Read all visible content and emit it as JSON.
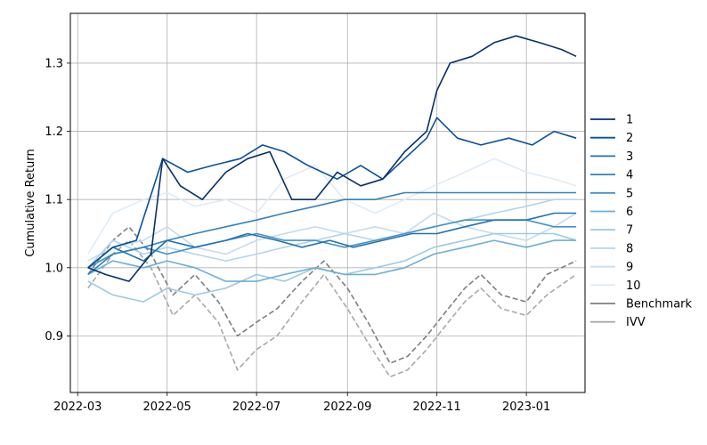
{
  "chart_data": {
    "type": "line",
    "title": "",
    "xlabel": "",
    "ylabel": "Cumulative Return",
    "xlim": [
      "2022-02-24",
      "2023-02-10"
    ],
    "ylim": [
      0.817,
      1.373
    ],
    "x_ticks": [
      "2022-03",
      "2022-05",
      "2022-07",
      "2022-09",
      "2022-11",
      "2023-01"
    ],
    "y_ticks": [
      "0.9",
      "1.0",
      "1.1",
      "1.2",
      "1.3"
    ],
    "grid": true,
    "legend_position": "center-right, outside plot",
    "series": [
      {
        "name": "1",
        "color": "#08306b",
        "dash": "solid",
        "points": [
          [
            "2022-03-08",
            1.0
          ],
          [
            "2022-03-20",
            0.99
          ],
          [
            "2022-04-05",
            0.98
          ],
          [
            "2022-04-20",
            1.02
          ],
          [
            "2022-04-28",
            1.16
          ],
          [
            "2022-05-10",
            1.12
          ],
          [
            "2022-05-25",
            1.1
          ],
          [
            "2022-06-10",
            1.14
          ],
          [
            "2022-06-25",
            1.16
          ],
          [
            "2022-07-10",
            1.17
          ],
          [
            "2022-07-25",
            1.1
          ],
          [
            "2022-08-10",
            1.1
          ],
          [
            "2022-08-25",
            1.14
          ],
          [
            "2022-09-10",
            1.12
          ],
          [
            "2022-09-25",
            1.13
          ],
          [
            "2022-10-10",
            1.17
          ],
          [
            "2022-10-25",
            1.2
          ],
          [
            "2022-11-01",
            1.26
          ],
          [
            "2022-11-10",
            1.3
          ],
          [
            "2022-11-25",
            1.31
          ],
          [
            "2022-12-10",
            1.33
          ],
          [
            "2022-12-25",
            1.34
          ],
          [
            "2023-01-10",
            1.33
          ],
          [
            "2023-01-25",
            1.32
          ],
          [
            "2023-02-04",
            1.31
          ]
        ]
      },
      {
        "name": "2",
        "color": "#08519c",
        "dash": "solid",
        "points": [
          [
            "2022-03-08",
            1.0
          ],
          [
            "2022-03-25",
            1.03
          ],
          [
            "2022-04-10",
            1.04
          ],
          [
            "2022-04-28",
            1.16
          ],
          [
            "2022-05-15",
            1.14
          ],
          [
            "2022-06-01",
            1.15
          ],
          [
            "2022-06-20",
            1.16
          ],
          [
            "2022-07-05",
            1.18
          ],
          [
            "2022-07-20",
            1.17
          ],
          [
            "2022-08-05",
            1.15
          ],
          [
            "2022-08-25",
            1.13
          ],
          [
            "2022-09-10",
            1.15
          ],
          [
            "2022-09-25",
            1.13
          ],
          [
            "2022-10-10",
            1.16
          ],
          [
            "2022-10-25",
            1.19
          ],
          [
            "2022-11-01",
            1.22
          ],
          [
            "2022-11-15",
            1.19
          ],
          [
            "2022-12-01",
            1.18
          ],
          [
            "2022-12-20",
            1.19
          ],
          [
            "2023-01-05",
            1.18
          ],
          [
            "2023-01-20",
            1.2
          ],
          [
            "2023-02-04",
            1.19
          ]
        ]
      },
      {
        "name": "3",
        "color": "#2171b5",
        "dash": "solid",
        "points": [
          [
            "2022-03-08",
            1.0
          ],
          [
            "2022-03-25",
            1.03
          ],
          [
            "2022-04-15",
            1.01
          ],
          [
            "2022-05-01",
            1.04
          ],
          [
            "2022-05-20",
            1.03
          ],
          [
            "2022-06-10",
            1.04
          ],
          [
            "2022-06-25",
            1.05
          ],
          [
            "2022-07-15",
            1.04
          ],
          [
            "2022-08-01",
            1.03
          ],
          [
            "2022-08-20",
            1.04
          ],
          [
            "2022-09-05",
            1.03
          ],
          [
            "2022-09-25",
            1.04
          ],
          [
            "2022-10-15",
            1.05
          ],
          [
            "2022-11-01",
            1.05
          ],
          [
            "2022-11-20",
            1.06
          ],
          [
            "2022-12-10",
            1.07
          ],
          [
            "2023-01-01",
            1.07
          ],
          [
            "2023-01-20",
            1.08
          ],
          [
            "2023-02-04",
            1.08
          ]
        ]
      },
      {
        "name": "4",
        "color": "#3182bd",
        "dash": "solid",
        "points": [
          [
            "2022-03-08",
            0.99
          ],
          [
            "2022-03-25",
            1.02
          ],
          [
            "2022-04-15",
            1.03
          ],
          [
            "2022-05-01",
            1.04
          ],
          [
            "2022-05-20",
            1.05
          ],
          [
            "2022-06-10",
            1.06
          ],
          [
            "2022-07-01",
            1.07
          ],
          [
            "2022-07-20",
            1.08
          ],
          [
            "2022-08-10",
            1.09
          ],
          [
            "2022-08-30",
            1.1
          ],
          [
            "2022-09-20",
            1.1
          ],
          [
            "2022-10-10",
            1.11
          ],
          [
            "2022-10-30",
            1.11
          ],
          [
            "2022-11-20",
            1.11
          ],
          [
            "2022-12-10",
            1.11
          ],
          [
            "2023-01-01",
            1.11
          ],
          [
            "2023-01-20",
            1.11
          ],
          [
            "2023-02-04",
            1.11
          ]
        ]
      },
      {
        "name": "5",
        "color": "#4292c6",
        "dash": "solid",
        "points": [
          [
            "2022-03-08",
            1.0
          ],
          [
            "2022-03-25",
            1.02
          ],
          [
            "2022-04-15",
            1.03
          ],
          [
            "2022-05-01",
            1.02
          ],
          [
            "2022-05-20",
            1.03
          ],
          [
            "2022-06-10",
            1.04
          ],
          [
            "2022-07-01",
            1.05
          ],
          [
            "2022-07-20",
            1.04
          ],
          [
            "2022-08-10",
            1.04
          ],
          [
            "2022-08-30",
            1.03
          ],
          [
            "2022-09-20",
            1.04
          ],
          [
            "2022-10-10",
            1.05
          ],
          [
            "2022-10-30",
            1.06
          ],
          [
            "2022-11-20",
            1.07
          ],
          [
            "2022-12-10",
            1.07
          ],
          [
            "2023-01-01",
            1.07
          ],
          [
            "2023-01-20",
            1.06
          ],
          [
            "2023-02-04",
            1.06
          ]
        ]
      },
      {
        "name": "6",
        "color": "#6baed6",
        "dash": "solid",
        "points": [
          [
            "2022-03-08",
            0.99
          ],
          [
            "2022-03-25",
            1.01
          ],
          [
            "2022-04-15",
            1.0
          ],
          [
            "2022-05-01",
            1.01
          ],
          [
            "2022-05-20",
            1.0
          ],
          [
            "2022-06-10",
            0.98
          ],
          [
            "2022-07-01",
            0.98
          ],
          [
            "2022-07-20",
            0.99
          ],
          [
            "2022-08-10",
            1.0
          ],
          [
            "2022-08-30",
            0.99
          ],
          [
            "2022-09-20",
            0.99
          ],
          [
            "2022-10-10",
            1.0
          ],
          [
            "2022-10-30",
            1.02
          ],
          [
            "2022-11-20",
            1.03
          ],
          [
            "2022-12-10",
            1.04
          ],
          [
            "2023-01-01",
            1.03
          ],
          [
            "2023-01-20",
            1.04
          ],
          [
            "2023-02-04",
            1.04
          ]
        ]
      },
      {
        "name": "7",
        "color": "#9ecae1",
        "dash": "solid",
        "points": [
          [
            "2022-03-08",
            0.98
          ],
          [
            "2022-03-25",
            0.96
          ],
          [
            "2022-04-15",
            0.95
          ],
          [
            "2022-05-01",
            0.97
          ],
          [
            "2022-05-20",
            0.96
          ],
          [
            "2022-06-10",
            0.97
          ],
          [
            "2022-07-01",
            0.99
          ],
          [
            "2022-07-20",
            0.98
          ],
          [
            "2022-08-10",
            1.0
          ],
          [
            "2022-08-30",
            0.99
          ],
          [
            "2022-09-20",
            1.0
          ],
          [
            "2022-10-10",
            1.01
          ],
          [
            "2022-10-30",
            1.03
          ],
          [
            "2022-11-20",
            1.04
          ],
          [
            "2022-12-10",
            1.05
          ],
          [
            "2023-01-01",
            1.05
          ],
          [
            "2023-01-20",
            1.05
          ],
          [
            "2023-02-04",
            1.04
          ]
        ]
      },
      {
        "name": "8",
        "color": "#b5d4e9",
        "dash": "solid",
        "points": [
          [
            "2022-03-08",
            1.0
          ],
          [
            "2022-03-25",
            1.04
          ],
          [
            "2022-04-15",
            1.02
          ],
          [
            "2022-05-01",
            1.03
          ],
          [
            "2022-05-20",
            1.02
          ],
          [
            "2022-06-10",
            1.01
          ],
          [
            "2022-07-01",
            1.02
          ],
          [
            "2022-07-20",
            1.03
          ],
          [
            "2022-08-10",
            1.04
          ],
          [
            "2022-08-30",
            1.05
          ],
          [
            "2022-09-20",
            1.04
          ],
          [
            "2022-10-10",
            1.05
          ],
          [
            "2022-10-30",
            1.06
          ],
          [
            "2022-11-20",
            1.07
          ],
          [
            "2022-12-10",
            1.08
          ],
          [
            "2023-01-01",
            1.09
          ],
          [
            "2023-01-20",
            1.1
          ],
          [
            "2023-02-04",
            1.1
          ]
        ]
      },
      {
        "name": "9",
        "color": "#c6dbef",
        "dash": "solid",
        "points": [
          [
            "2022-03-08",
            1.01
          ],
          [
            "2022-03-25",
            1.03
          ],
          [
            "2022-04-15",
            1.04
          ],
          [
            "2022-05-01",
            1.06
          ],
          [
            "2022-05-20",
            1.03
          ],
          [
            "2022-06-10",
            1.02
          ],
          [
            "2022-07-01",
            1.04
          ],
          [
            "2022-07-20",
            1.05
          ],
          [
            "2022-08-10",
            1.06
          ],
          [
            "2022-08-30",
            1.05
          ],
          [
            "2022-09-20",
            1.06
          ],
          [
            "2022-10-10",
            1.05
          ],
          [
            "2022-10-30",
            1.08
          ],
          [
            "2022-11-20",
            1.06
          ],
          [
            "2022-12-10",
            1.05
          ],
          [
            "2023-01-01",
            1.04
          ],
          [
            "2023-01-20",
            1.06
          ],
          [
            "2023-02-04",
            1.08
          ]
        ]
      },
      {
        "name": "10",
        "color": "#deebf7",
        "dash": "solid",
        "points": [
          [
            "2022-03-08",
            1.02
          ],
          [
            "2022-03-25",
            1.08
          ],
          [
            "2022-04-15",
            1.1
          ],
          [
            "2022-05-01",
            1.11
          ],
          [
            "2022-05-20",
            1.09
          ],
          [
            "2022-06-10",
            1.1
          ],
          [
            "2022-07-01",
            1.08
          ],
          [
            "2022-07-20",
            1.13
          ],
          [
            "2022-08-10",
            1.15
          ],
          [
            "2022-08-30",
            1.1
          ],
          [
            "2022-09-20",
            1.08
          ],
          [
            "2022-10-10",
            1.1
          ],
          [
            "2022-10-30",
            1.12
          ],
          [
            "2022-11-20",
            1.14
          ],
          [
            "2022-12-10",
            1.16
          ],
          [
            "2023-01-01",
            1.14
          ],
          [
            "2023-01-20",
            1.13
          ],
          [
            "2023-02-04",
            1.12
          ]
        ]
      },
      {
        "name": "Benchmark",
        "color": "#7f7f7f",
        "dash": "dashed",
        "points": [
          [
            "2022-03-08",
            0.99
          ],
          [
            "2022-03-25",
            1.04
          ],
          [
            "2022-04-05",
            1.06
          ],
          [
            "2022-04-20",
            1.02
          ],
          [
            "2022-05-05",
            0.96
          ],
          [
            "2022-05-20",
            0.99
          ],
          [
            "2022-06-05",
            0.95
          ],
          [
            "2022-06-18",
            0.9
          ],
          [
            "2022-07-01",
            0.92
          ],
          [
            "2022-07-15",
            0.94
          ],
          [
            "2022-08-01",
            0.98
          ],
          [
            "2022-08-16",
            1.01
          ],
          [
            "2022-09-01",
            0.97
          ],
          [
            "2022-09-15",
            0.92
          ],
          [
            "2022-09-30",
            0.86
          ],
          [
            "2022-10-12",
            0.87
          ],
          [
            "2022-10-25",
            0.9
          ],
          [
            "2022-11-05",
            0.93
          ],
          [
            "2022-11-20",
            0.97
          ],
          [
            "2022-12-01",
            0.99
          ],
          [
            "2022-12-15",
            0.96
          ],
          [
            "2023-01-01",
            0.95
          ],
          [
            "2023-01-15",
            0.99
          ],
          [
            "2023-02-04",
            1.01
          ]
        ]
      },
      {
        "name": "IVV",
        "color": "#a9a9a9",
        "dash": "dashed",
        "points": [
          [
            "2022-03-08",
            0.97
          ],
          [
            "2022-03-25",
            1.02
          ],
          [
            "2022-04-05",
            1.04
          ],
          [
            "2022-04-20",
            1.0
          ],
          [
            "2022-05-05",
            0.93
          ],
          [
            "2022-05-20",
            0.96
          ],
          [
            "2022-06-05",
            0.92
          ],
          [
            "2022-06-18",
            0.85
          ],
          [
            "2022-07-01",
            0.88
          ],
          [
            "2022-07-15",
            0.9
          ],
          [
            "2022-08-01",
            0.95
          ],
          [
            "2022-08-16",
            0.99
          ],
          [
            "2022-09-01",
            0.94
          ],
          [
            "2022-09-15",
            0.89
          ],
          [
            "2022-09-30",
            0.84
          ],
          [
            "2022-10-12",
            0.85
          ],
          [
            "2022-10-25",
            0.88
          ],
          [
            "2022-11-05",
            0.91
          ],
          [
            "2022-11-20",
            0.95
          ],
          [
            "2022-12-01",
            0.97
          ],
          [
            "2022-12-15",
            0.94
          ],
          [
            "2023-01-01",
            0.93
          ],
          [
            "2023-01-15",
            0.96
          ],
          [
            "2023-02-04",
            0.99
          ]
        ]
      }
    ]
  }
}
